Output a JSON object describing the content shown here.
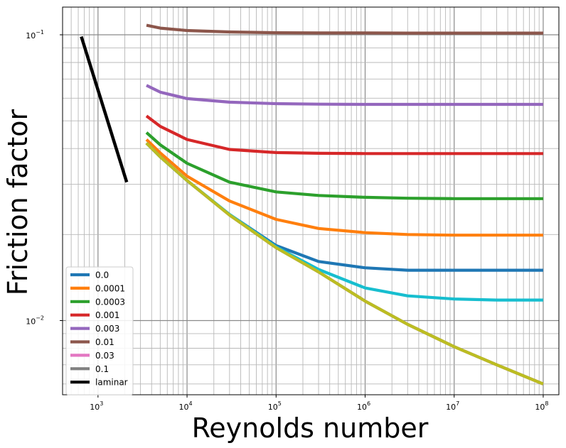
{
  "chart_data": {
    "type": "line",
    "title": "",
    "xlabel": "Reynolds number",
    "ylabel": "Friction factor",
    "xscale": "log",
    "yscale": "log",
    "xlim": [
      400,
      150000000
    ],
    "ylim": [
      0.0055,
      0.125
    ],
    "grid": "both major and minor",
    "legend_position": "lower-left",
    "x_ticks": [
      {
        "value": 1000,
        "base": "10",
        "exp": "3"
      },
      {
        "value": 10000,
        "base": "10",
        "exp": "4"
      },
      {
        "value": 100000,
        "base": "10",
        "exp": "5"
      },
      {
        "value": 1000000,
        "base": "10",
        "exp": "6"
      },
      {
        "value": 10000000,
        "base": "10",
        "exp": "7"
      },
      {
        "value": 100000000,
        "base": "10",
        "exp": "8"
      }
    ],
    "y_ticks": [
      {
        "value": 0.01,
        "base": "10",
        "exp": "−2"
      },
      {
        "value": 0.1,
        "base": "10",
        "exp": "−1"
      }
    ],
    "x": [
      3500,
      5000,
      10000,
      30000,
      100000,
      300000,
      1000000,
      3000000,
      10000000,
      30000000,
      100000000
    ],
    "series": [
      {
        "name": "0.0",
        "color": "#1f77b4",
        "values": [
          0.0418,
          0.0374,
          0.0309,
          0.0235,
          0.0183,
          0.0161,
          0.0153,
          0.015,
          0.015,
          0.015,
          0.015
        ]
      },
      {
        "name": "0.0001",
        "color": "#ff7f0e",
        "values": [
          0.043,
          0.0386,
          0.032,
          0.0262,
          0.0226,
          0.021,
          0.0203,
          0.02,
          0.0199,
          0.0199,
          0.0199
        ]
      },
      {
        "name": "0.0003",
        "color": "#2ca02c",
        "values": [
          0.0455,
          0.0412,
          0.0355,
          0.0305,
          0.0282,
          0.0274,
          0.027,
          0.0268,
          0.0267,
          0.0267,
          0.0267
        ]
      },
      {
        "name": "0.001",
        "color": "#d62728",
        "values": [
          0.052,
          0.0478,
          0.043,
          0.0397,
          0.0387,
          0.0385,
          0.0384,
          0.0384,
          0.0384,
          0.0384,
          0.0384
        ]
      },
      {
        "name": "0.003",
        "color": "#9467bd",
        "values": [
          0.0665,
          0.063,
          0.0598,
          0.0581,
          0.0574,
          0.0572,
          0.0571,
          0.0571,
          0.0571,
          0.0571,
          0.0571
        ]
      },
      {
        "name": "0.01",
        "color": "#8c564b",
        "values": [
          0.108,
          0.1055,
          0.1035,
          0.1023,
          0.1017,
          0.1015,
          0.1015,
          0.1014,
          0.1014,
          0.1014,
          0.1014
        ]
      },
      {
        "name": "0.03",
        "color": "#e377c2",
        "values": [
          0.0418,
          0.0374,
          0.0309,
          0.0234,
          0.018,
          0.0148,
          0.0117,
          0.0097,
          0.0081,
          0.007,
          0.006
        ]
      },
      {
        "name": "0.1",
        "color": "#7f7f7f",
        "values": [
          0.0418,
          0.0374,
          0.0309,
          0.0234,
          0.018,
          0.0148,
          0.0117,
          0.0097,
          0.0081,
          0.007,
          0.006
        ]
      },
      {
        "name": "",
        "color": "#17becf",
        "values": [
          0.0418,
          0.0374,
          0.0309,
          0.0235,
          0.0181,
          0.0151,
          0.013,
          0.0122,
          0.0119,
          0.0118,
          0.0118
        ]
      },
      {
        "name": "",
        "color": "#bcbd22",
        "values": [
          0.0418,
          0.0374,
          0.0309,
          0.0234,
          0.018,
          0.0148,
          0.0117,
          0.0097,
          0.0081,
          0.007,
          0.006
        ]
      }
    ],
    "laminar": {
      "name": "laminar",
      "color": "#000000",
      "x": [
        650,
        2100
      ],
      "values": [
        0.0985,
        0.0305
      ]
    }
  }
}
